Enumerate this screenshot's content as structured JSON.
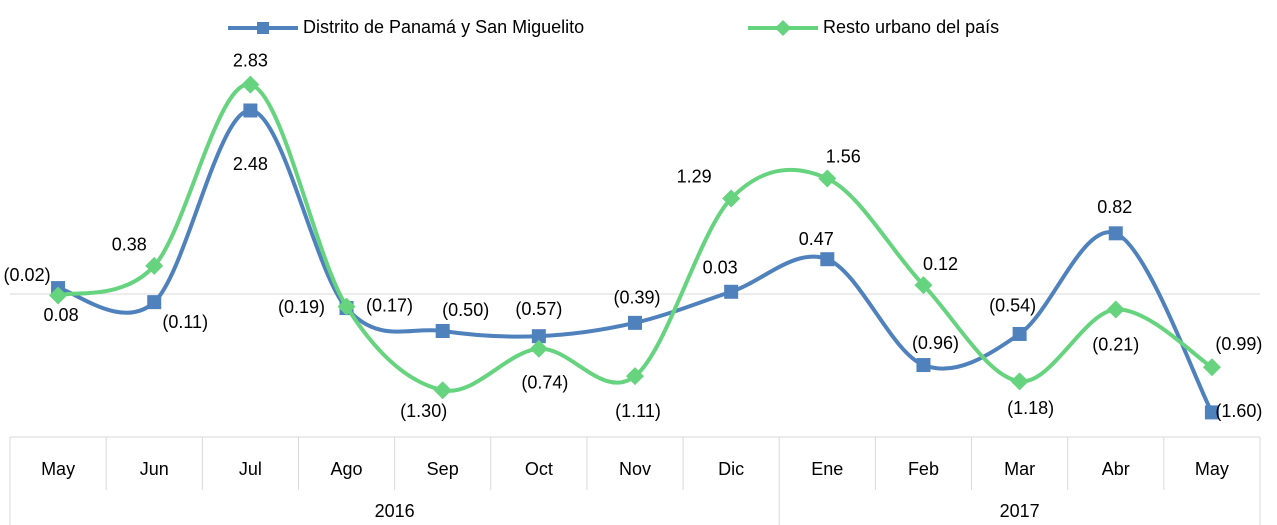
{
  "chart_data": {
    "type": "line",
    "categories": [
      "May",
      "Jun",
      "Jul",
      "Ago",
      "Sep",
      "Oct",
      "Nov",
      "Dic",
      "Ene",
      "Feb",
      "Mar",
      "Abr",
      "May"
    ],
    "category_groups": [
      "2016",
      "2016",
      "2016",
      "2016",
      "2016",
      "2016",
      "2016",
      "2016",
      "2017",
      "2017",
      "2017",
      "2017",
      "2017"
    ],
    "series": [
      {
        "name": "Distrito de Panamá y San Miguelito",
        "color": "#4f81bd",
        "values": [
          0.08,
          -0.11,
          2.48,
          -0.19,
          -0.5,
          -0.57,
          -0.39,
          0.03,
          0.47,
          -0.96,
          -0.54,
          0.82,
          -1.6
        ],
        "value_labels": [
          "0.08",
          "(0.11)",
          "2.48",
          "(0.19)",
          "(0.50)",
          "(0.57)",
          "(0.39)",
          "0.03",
          "0.47",
          "(0.96)",
          "(0.54)",
          "0.82",
          "(1.60)"
        ]
      },
      {
        "name": "Resto urbano del país",
        "color": "#66d37e",
        "values": [
          -0.02,
          0.38,
          2.83,
          -0.17,
          -1.3,
          -0.74,
          -1.11,
          1.29,
          1.56,
          0.12,
          -1.18,
          -0.21,
          -0.99
        ],
        "value_labels": [
          "(0.02)",
          "0.38",
          "2.83",
          "(0.17)",
          "(1.30)",
          "(0.74)",
          "(1.11)",
          "1.29",
          "1.56",
          "0.12",
          "(1.18)",
          "(0.21)",
          "(0.99)"
        ]
      }
    ],
    "ylim": [
      -1.8,
      3.2
    ],
    "legend": "top"
  }
}
